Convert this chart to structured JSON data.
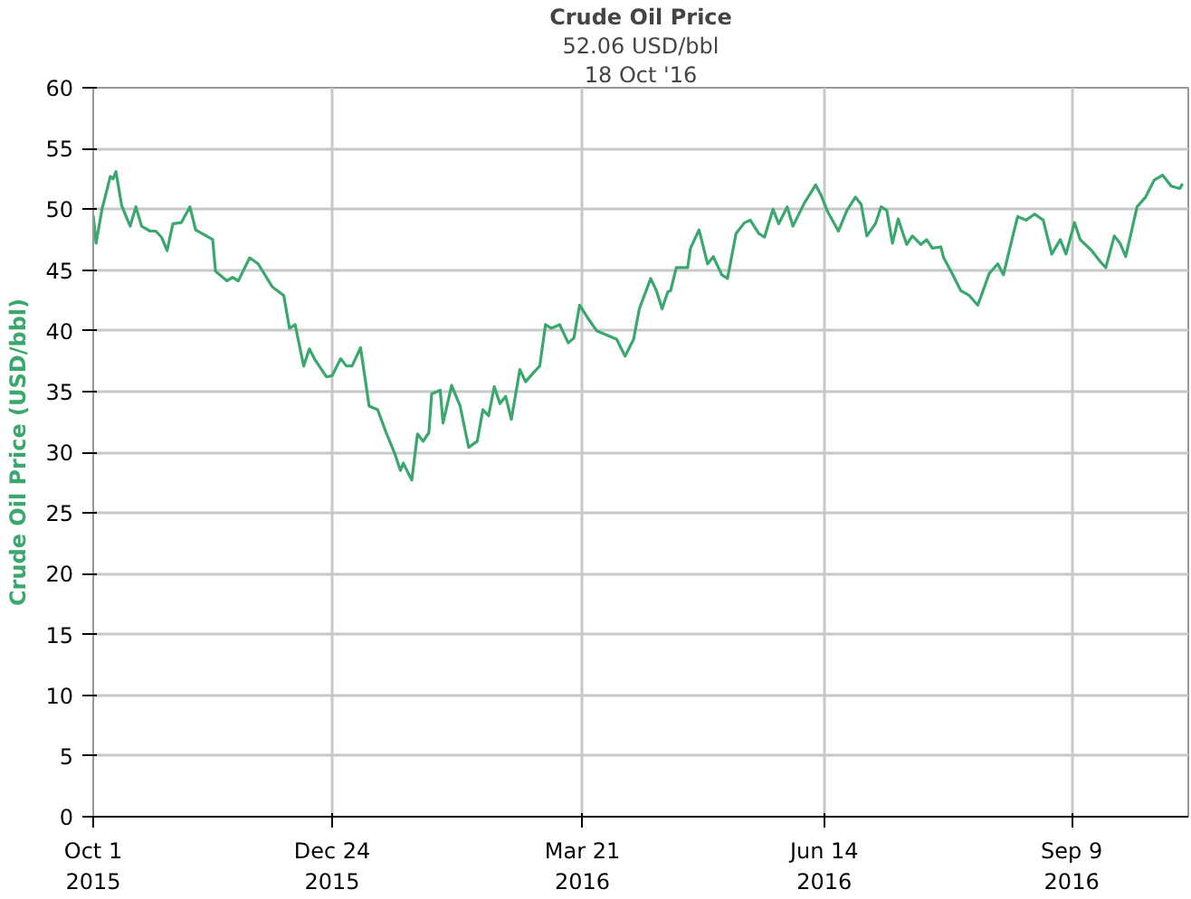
{
  "chart_data": {
    "type": "line",
    "title": "Crude Oil Price",
    "subtitle": "52.06 USD/bbl",
    "annotations": [
      "18 Oct '16"
    ],
    "ylabel": "Crude Oil Price (USD/bbl)",
    "x": [
      "2015-10-01",
      "2015-10-02",
      "2015-10-04",
      "2015-10-07",
      "2015-10-08",
      "2015-10-09",
      "2015-10-11",
      "2015-10-14",
      "2015-10-16",
      "2015-10-18",
      "2015-10-21",
      "2015-10-23",
      "2015-10-25",
      "2015-10-27",
      "2015-10-29",
      "2015-11-01",
      "2015-11-04",
      "2015-11-06",
      "2015-11-12",
      "2015-11-13",
      "2015-11-17",
      "2015-11-19",
      "2015-11-21",
      "2015-11-25",
      "2015-11-28",
      "2015-12-03",
      "2015-12-07",
      "2015-12-09",
      "2015-12-11",
      "2015-12-14",
      "2015-12-16",
      "2015-12-18",
      "2015-12-22",
      "2015-12-24",
      "2015-12-27",
      "2015-12-29",
      "2015-12-31",
      "2016-01-03",
      "2016-01-06",
      "2016-01-09",
      "2016-01-12",
      "2016-01-15",
      "2016-01-17",
      "2016-01-18",
      "2016-01-21",
      "2016-01-23",
      "2016-01-25",
      "2016-01-27",
      "2016-01-28",
      "2016-01-31",
      "2016-02-01",
      "2016-02-04",
      "2016-02-07",
      "2016-02-10",
      "2016-02-13",
      "2016-02-15",
      "2016-02-17",
      "2016-02-19",
      "2016-02-21",
      "2016-02-23",
      "2016-02-25",
      "2016-02-28",
      "2016-03-01",
      "2016-03-04",
      "2016-03-06",
      "2016-03-08",
      "2016-03-10",
      "2016-03-13",
      "2016-03-16",
      "2016-03-18",
      "2016-03-20",
      "2016-03-23",
      "2016-03-26",
      "2016-03-29",
      "2016-04-02",
      "2016-04-05",
      "2016-04-08",
      "2016-04-10",
      "2016-04-14",
      "2016-04-16",
      "2016-04-18",
      "2016-04-20",
      "2016-04-21",
      "2016-04-23",
      "2016-04-27",
      "2016-04-28",
      "2016-05-01",
      "2016-05-04",
      "2016-05-06",
      "2016-05-09",
      "2016-05-11",
      "2016-05-14",
      "2016-05-17",
      "2016-05-19",
      "2016-05-22",
      "2016-05-24",
      "2016-05-27",
      "2016-05-29",
      "2016-06-01",
      "2016-06-03",
      "2016-06-07",
      "2016-06-11",
      "2016-06-13",
      "2016-06-15",
      "2016-06-19",
      "2016-06-22",
      "2016-06-25",
      "2016-06-27",
      "2016-06-29",
      "2016-07-02",
      "2016-07-04",
      "2016-07-06",
      "2016-07-08",
      "2016-07-10",
      "2016-07-13",
      "2016-07-15",
      "2016-07-18",
      "2016-07-20",
      "2016-07-22",
      "2016-07-25",
      "2016-07-26",
      "2016-07-29",
      "2016-08-01",
      "2016-08-04",
      "2016-08-07",
      "2016-08-11",
      "2016-08-14",
      "2016-08-16",
      "2016-08-19",
      "2016-08-21",
      "2016-08-24",
      "2016-08-27",
      "2016-08-30",
      "2016-09-02",
      "2016-09-05",
      "2016-09-07",
      "2016-09-10",
      "2016-09-12",
      "2016-09-16",
      "2016-09-19",
      "2016-09-21",
      "2016-09-24",
      "2016-09-26",
      "2016-09-28",
      "2016-10-02",
      "2016-10-05",
      "2016-10-08",
      "2016-10-11",
      "2016-10-14",
      "2016-10-17",
      "2016-10-18"
    ],
    "series": [
      {
        "color": "#3aa76d",
        "values": [
          49.5,
          47.2,
          49.9,
          52.7,
          52.5,
          53.1,
          50.3,
          48.6,
          50.2,
          48.6,
          48.2,
          48.2,
          47.7,
          46.6,
          48.8,
          48.9,
          50.2,
          48.3,
          47.5,
          44.9,
          44.1,
          44.4,
          44.1,
          46.0,
          45.5,
          43.6,
          42.9,
          40.2,
          40.5,
          37.1,
          38.5,
          37.6,
          36.2,
          36.3,
          37.7,
          37.1,
          37.1,
          38.6,
          33.8,
          33.5,
          31.6,
          29.9,
          28.5,
          29.1,
          27.7,
          31.5,
          30.9,
          31.6,
          34.8,
          35.1,
          32.4,
          35.5,
          33.8,
          30.4,
          30.9,
          33.5,
          33.0,
          35.4,
          34.0,
          34.6,
          32.7,
          36.8,
          35.8,
          36.6,
          37.1,
          40.5,
          40.2,
          40.5,
          39.0,
          39.4,
          42.1,
          41.0,
          40.0,
          39.7,
          39.3,
          37.9,
          39.3,
          41.8,
          44.3,
          43.3,
          41.8,
          43.2,
          43.3,
          45.2,
          45.2,
          46.8,
          48.3,
          45.5,
          46.1,
          44.6,
          44.3,
          48.0,
          48.9,
          49.1,
          48.0,
          47.7,
          50.0,
          48.8,
          50.2,
          48.6,
          50.5,
          52.0,
          51.1,
          49.9,
          48.2,
          49.9,
          51.0,
          50.4,
          47.8,
          48.8,
          50.2,
          49.9,
          47.2,
          49.2,
          47.1,
          47.8,
          47.1,
          47.5,
          46.8,
          46.9,
          46.0,
          44.7,
          43.3,
          42.9,
          42.1,
          44.7,
          45.5,
          44.6,
          47.5,
          49.4,
          49.1,
          49.6,
          49.1,
          46.3,
          47.5,
          46.3,
          48.9,
          47.5,
          46.6,
          45.7,
          45.2,
          47.8,
          47.2,
          46.1,
          50.2,
          51.0,
          52.4,
          52.8,
          51.9,
          51.7,
          52.1
        ]
      }
    ],
    "xlim": [
      "2015-10-01",
      "2016-10-20"
    ],
    "xticks": [
      {
        "value": "2015-10-01",
        "label": "Oct 1\n2015"
      },
      {
        "value": "2015-12-24",
        "label": "Dec 24\n2015"
      },
      {
        "value": "2016-03-21",
        "label": "Mar 21\n2016"
      },
      {
        "value": "2016-06-14",
        "label": "Jun 14\n2016"
      },
      {
        "value": "2016-09-09",
        "label": "Sep 9\n2016"
      }
    ],
    "ylim": [
      0,
      60
    ],
    "yticks": [
      0,
      5,
      10,
      15,
      20,
      25,
      30,
      35,
      40,
      45,
      50,
      55,
      60
    ],
    "grid": true,
    "line_style": "solid"
  }
}
